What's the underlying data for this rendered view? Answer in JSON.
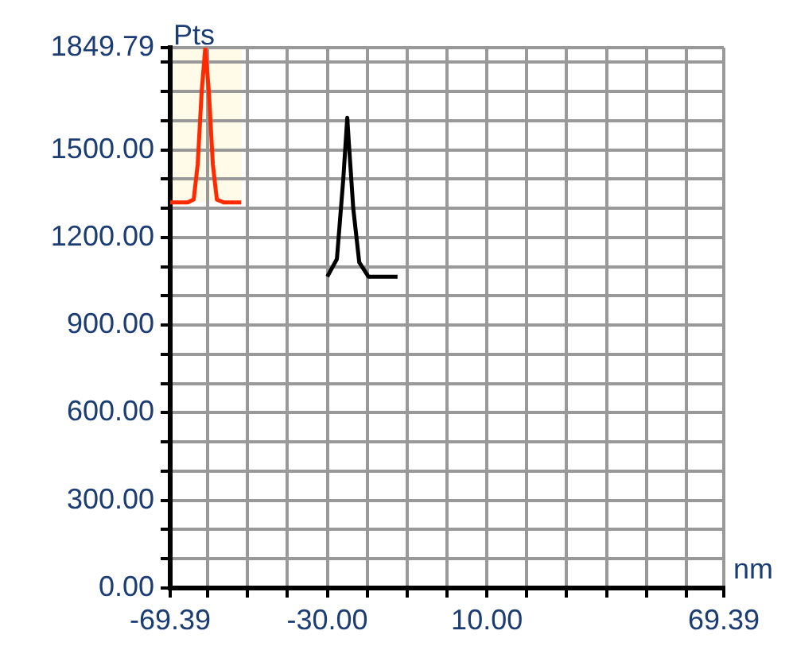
{
  "chart_data": {
    "type": "line",
    "xlabel": "nm",
    "ylabel": "Pts",
    "xlim": [
      -69.39,
      69.39
    ],
    "xticks": [
      {
        "value": -69.39,
        "label": "-69.39"
      },
      {
        "value": -60,
        "label": null
      },
      {
        "value": -50,
        "label": null
      },
      {
        "value": -40,
        "label": null
      },
      {
        "value": -30,
        "label": "-30.00"
      },
      {
        "value": -20,
        "label": null
      },
      {
        "value": -10,
        "label": null
      },
      {
        "value": 0,
        "label": null
      },
      {
        "value": 10,
        "label": "10.00"
      },
      {
        "value": 20,
        "label": null
      },
      {
        "value": 30,
        "label": null
      },
      {
        "value": 40,
        "label": null
      },
      {
        "value": 50,
        "label": null
      },
      {
        "value": 60,
        "label": null
      },
      {
        "value": 69.39,
        "label": "69.39"
      }
    ],
    "ylim": [
      0,
      1849.79
    ],
    "yticks": [
      {
        "value": 0,
        "label": "0.00"
      },
      {
        "value": 100,
        "label": null
      },
      {
        "value": 200,
        "label": null
      },
      {
        "value": 300,
        "label": "300.00"
      },
      {
        "value": 400,
        "label": null
      },
      {
        "value": 500,
        "label": null
      },
      {
        "value": 600,
        "label": "600.00"
      },
      {
        "value": 700,
        "label": null
      },
      {
        "value": 800,
        "label": null
      },
      {
        "value": 900,
        "label": "900.00"
      },
      {
        "value": 1000,
        "label": null
      },
      {
        "value": 1100,
        "label": null
      },
      {
        "value": 1200,
        "label": "1200.00"
      },
      {
        "value": 1300,
        "label": null
      },
      {
        "value": 1400,
        "label": null
      },
      {
        "value": 1500,
        "label": "1500.00"
      },
      {
        "value": 1600,
        "label": null
      },
      {
        "value": 1700,
        "label": null
      },
      {
        "value": 1800,
        "label": null
      },
      1849.79
    ],
    "grid": true,
    "legend": false,
    "marker": "none",
    "line_style": "solid",
    "series": [
      {
        "color": "#ff2a00",
        "x": [
          -69.39,
          -65,
          -63.5,
          -62.5,
          -61.5,
          -60.6,
          -59.7,
          -58.7,
          -57.7,
          -56,
          -51.6
        ],
        "values": [
          1320,
          1320,
          1330,
          1450,
          1700,
          1849,
          1700,
          1450,
          1330,
          1320,
          1320
        ]
      },
      {
        "color": "#000000",
        "x": [
          -30,
          -27.6,
          -26,
          -25,
          -24.6,
          -23.5,
          -22,
          -19.7,
          -12.4
        ],
        "values": [
          1066,
          1126,
          1400,
          1610,
          1523,
          1300,
          1115,
          1066,
          1066
        ]
      }
    ]
  }
}
